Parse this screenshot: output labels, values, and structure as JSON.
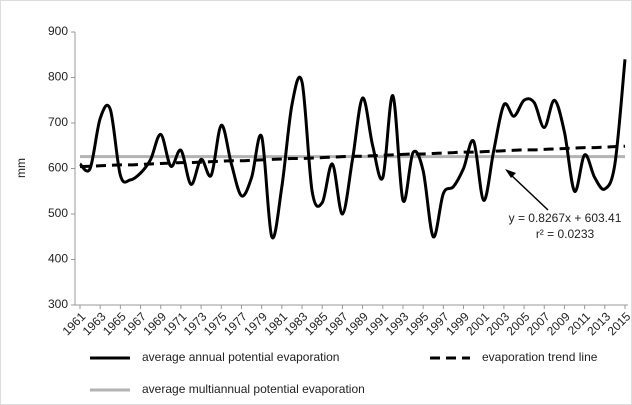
{
  "chart_data": {
    "type": "line",
    "y_label": "mm",
    "x": [
      1961,
      1962,
      1963,
      1964,
      1965,
      1966,
      1967,
      1968,
      1969,
      1970,
      1971,
      1972,
      1973,
      1974,
      1975,
      1976,
      1977,
      1978,
      1979,
      1980,
      1981,
      1982,
      1983,
      1984,
      1985,
      1986,
      1987,
      1988,
      1989,
      1990,
      1991,
      1992,
      1993,
      1994,
      1995,
      1996,
      1997,
      1998,
      1999,
      2000,
      2001,
      2002,
      2003,
      2004,
      2005,
      2006,
      2007,
      2008,
      2009,
      2010,
      2011,
      2012,
      2013,
      2014,
      2015
    ],
    "xlim": [
      1961,
      2015
    ],
    "xticks": [
      1961,
      1963,
      1965,
      1967,
      1969,
      1971,
      1973,
      1975,
      1977,
      1979,
      1981,
      1983,
      1985,
      1987,
      1989,
      1991,
      1993,
      1995,
      1997,
      1999,
      2001,
      2003,
      2005,
      2007,
      2009,
      2011,
      2013,
      2015
    ],
    "ylim": [
      300,
      900
    ],
    "yticks": [
      300,
      400,
      500,
      600,
      700,
      800,
      900
    ],
    "series": [
      {
        "name": "average multiannual potential evaporation",
        "color": "#b3b3b3",
        "style": "solid",
        "values": [
          626,
          626,
          626,
          626,
          626,
          626,
          626,
          626,
          626,
          626,
          626,
          626,
          626,
          626,
          626,
          626,
          626,
          626,
          626,
          626,
          626,
          626,
          626,
          626,
          626,
          626,
          626,
          626,
          626,
          626,
          626,
          626,
          626,
          626,
          626,
          626,
          626,
          626,
          626,
          626,
          626,
          626,
          626,
          626,
          626,
          626,
          626,
          626,
          626,
          626,
          626,
          626,
          626,
          626,
          626
        ]
      },
      {
        "name": "evaporation trend line",
        "color": "#000000",
        "style": "dashed",
        "values": [
          604,
          605,
          606,
          607,
          608,
          608,
          609,
          610,
          611,
          612,
          613,
          613,
          614,
          615,
          616,
          617,
          617,
          618,
          619,
          620,
          621,
          622,
          622,
          623,
          624,
          625,
          626,
          627,
          627,
          628,
          629,
          630,
          631,
          632,
          632,
          633,
          634,
          635,
          636,
          636,
          637,
          638,
          639,
          640,
          641,
          641,
          642,
          643,
          644,
          645,
          646,
          646,
          647,
          648,
          649
        ]
      },
      {
        "name": "average annual potential evaporation",
        "color": "#000000",
        "style": "solid",
        "values": [
          610,
          600,
          710,
          730,
          585,
          575,
          590,
          620,
          675,
          605,
          640,
          565,
          620,
          585,
          695,
          610,
          540,
          580,
          670,
          450,
          560,
          740,
          790,
          550,
          525,
          610,
          500,
          620,
          755,
          650,
          580,
          760,
          530,
          635,
          595,
          450,
          545,
          560,
          600,
          660,
          530,
          640,
          740,
          715,
          750,
          745,
          690,
          750,
          680,
          550,
          630,
          580,
          555,
          610,
          840
        ]
      }
    ],
    "annotation": [
      "y = 0.8267x + 603.41",
      "r² = 0.0233"
    ]
  }
}
